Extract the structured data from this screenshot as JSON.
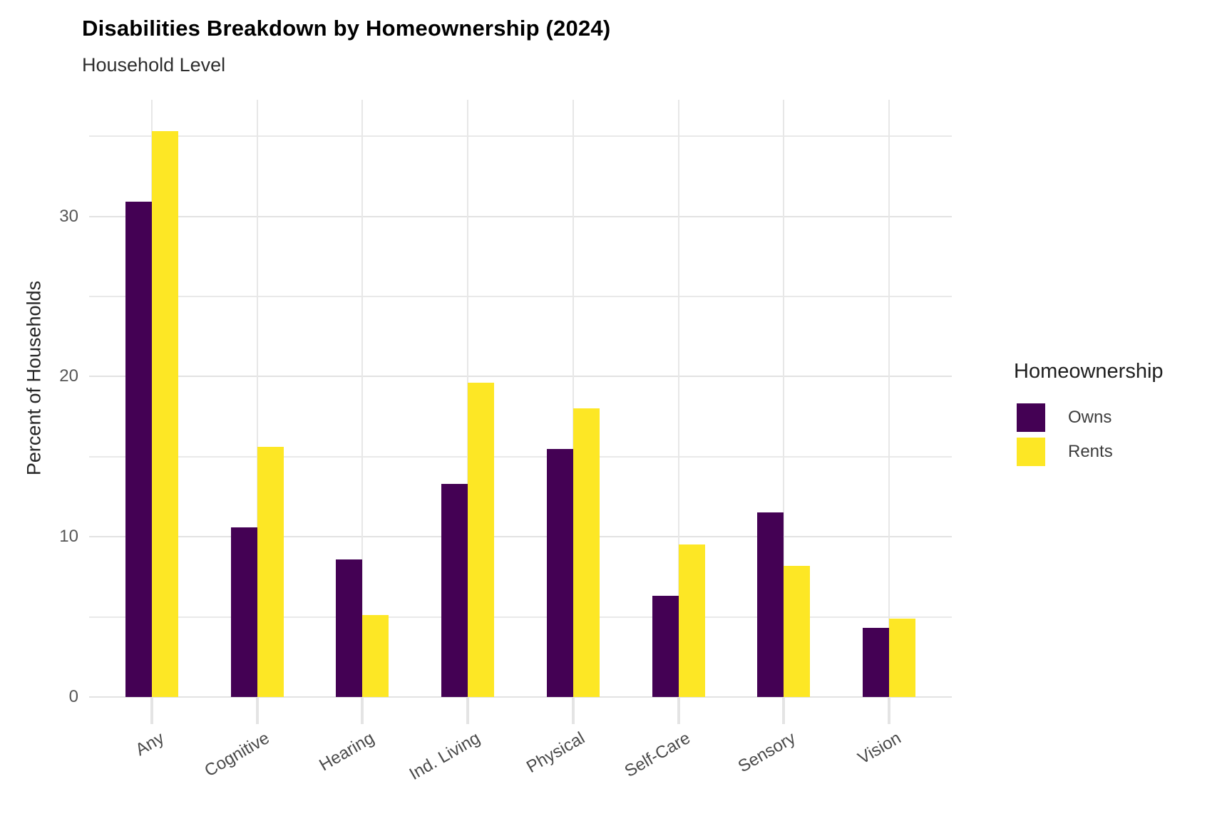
{
  "chart_data": {
    "type": "bar",
    "title": "Disabilities Breakdown by Homeownership (2024)",
    "subtitle": "Household Level",
    "ylabel": "Percent of Households",
    "xlabel": "",
    "categories": [
      "Any",
      "Cognitive",
      "Hearing",
      "Ind. Living",
      "Physical",
      "Self-Care",
      "Sensory",
      "Vision"
    ],
    "series": [
      {
        "name": "Owns",
        "color": "#440154",
        "values": [
          30.9,
          10.6,
          8.6,
          13.3,
          15.5,
          6.3,
          11.5,
          4.3
        ]
      },
      {
        "name": "Rents",
        "color": "#FDE725",
        "values": [
          35.3,
          15.6,
          5.1,
          19.6,
          18.0,
          9.5,
          8.2,
          4.9
        ]
      }
    ],
    "ylim": [
      0,
      36.9
    ],
    "yticks": [
      0,
      10,
      20,
      30
    ],
    "minor_gridlines": [
      5,
      15,
      25,
      35
    ],
    "grid": "on",
    "legend": {
      "title": "Homeownership",
      "position": "right",
      "entries": [
        "Owns",
        "Rents"
      ]
    }
  },
  "colors": {
    "owns": "#440154",
    "rents": "#FDE725",
    "gridline": "#e7e7e7",
    "background": "#ffffff"
  }
}
